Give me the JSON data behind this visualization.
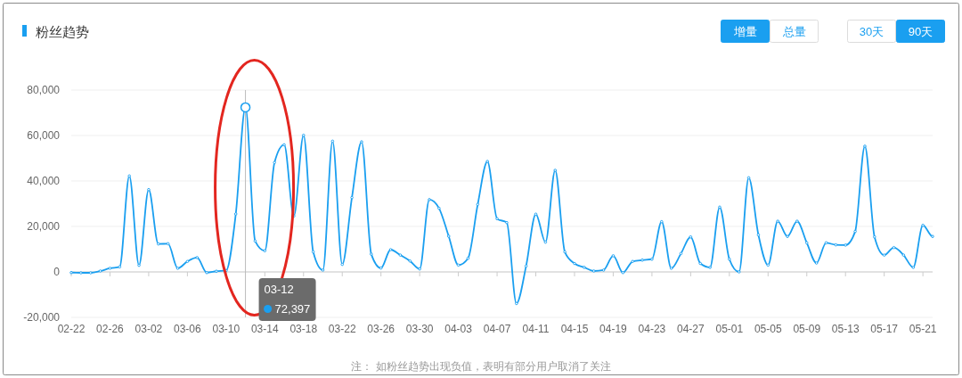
{
  "chart_data": [
    {
      "type": "line",
      "title": "粉丝趋势",
      "x": [
        "--02-22",
        "--02-23",
        "--02-24",
        "--02-25",
        "--02-26",
        "--02-27",
        "--02-28",
        "--03-01",
        "--03-02",
        "--03-03",
        "--03-04",
        "--03-05",
        "--03-06",
        "--03-07",
        "--03-08",
        "--03-09",
        "--03-10",
        "--03-11",
        "--03-12",
        "--03-13",
        "--03-14",
        "--03-15",
        "--03-16",
        "--03-17",
        "--03-18",
        "--03-19",
        "--03-20",
        "--03-21",
        "--03-22",
        "--03-23",
        "--03-24",
        "--03-25",
        "--03-26",
        "--03-27",
        "--03-28",
        "--03-29",
        "--03-30",
        "--03-31",
        "--04-01",
        "--04-02",
        "--04-03",
        "--04-04",
        "--04-05",
        "--04-06",
        "--04-07",
        "--04-08",
        "--04-09",
        "--04-10",
        "--04-11",
        "--04-12",
        "--04-13",
        "--04-14",
        "--04-15",
        "--04-16",
        "--04-17",
        "--04-18",
        "--04-19",
        "--04-20",
        "--04-21",
        "--04-22",
        "--04-23",
        "--04-24",
        "--04-25",
        "--04-26",
        "--04-27",
        "--04-28",
        "--04-29",
        "--04-30",
        "--05-01",
        "--05-02",
        "--05-03",
        "--05-04",
        "--05-05",
        "--05-06",
        "--05-07",
        "--05-08",
        "--05-09",
        "--05-10",
        "--05-11",
        "--05-12",
        "--05-13",
        "--05-14",
        "--05-15",
        "--05-16",
        "--05-17",
        "--05-18",
        "--05-19",
        "--05-20",
        "--05-21",
        "--05-22"
      ],
      "values": [
        -300,
        -400,
        -400,
        400,
        1600,
        2200,
        42200,
        2900,
        36200,
        12300,
        12400,
        1600,
        4600,
        6300,
        -300,
        300,
        600,
        25500,
        72397,
        13600,
        9300,
        48100,
        55900,
        24600,
        60100,
        8800,
        800,
        57500,
        3300,
        32700,
        57200,
        7800,
        1700,
        9800,
        7400,
        4800,
        1300,
        31800,
        28000,
        15700,
        3000,
        6000,
        29700,
        48600,
        23400,
        21700,
        -13900,
        2600,
        25400,
        13100,
        44700,
        8800,
        3700,
        2000,
        400,
        800,
        7100,
        -300,
        4600,
        5200,
        5600,
        22100,
        1600,
        8100,
        15400,
        3700,
        2000,
        28500,
        5600,
        0,
        41400,
        16300,
        3000,
        22300,
        15600,
        22300,
        12800,
        3900,
        12800,
        11900,
        11800,
        17800,
        55300,
        15400,
        7400,
        10700,
        7400,
        2000,
        20500,
        15600
      ],
      "color": "#1a9ff0",
      "marker": "circle",
      "grid": "y",
      "xlim": [
        "--02-22",
        "--05-22"
      ],
      "ylim": [
        -20000,
        80000
      ],
      "yticks": [
        {
          "value": -20000,
          "label": "-20,000"
        },
        0,
        {
          "value": 20000,
          "label": "20,000"
        },
        {
          "value": 40000,
          "label": "40,000"
        },
        {
          "value": 60000,
          "label": "60,000"
        },
        {
          "value": 80000,
          "label": "80,000"
        }
      ],
      "xticks": [
        {
          "value": "--02-22",
          "label": "02-22"
        },
        {
          "value": "--02-26",
          "label": "02-26"
        },
        {
          "value": "--03-02",
          "label": "03-02"
        },
        {
          "value": "--03-06",
          "label": "03-06"
        },
        {
          "value": "--03-10",
          "label": "03-10"
        },
        {
          "value": "--03-14",
          "label": "03-14"
        },
        {
          "value": "--03-18",
          "label": "03-18"
        },
        {
          "value": "--03-22",
          "label": "03-22"
        },
        {
          "value": "--03-26",
          "label": "03-26"
        },
        {
          "value": "--03-30",
          "label": "03-30"
        },
        {
          "value": "--04-03",
          "label": "04-03"
        },
        {
          "value": "--04-07",
          "label": "04-07"
        },
        {
          "value": "--04-11",
          "label": "04-11"
        },
        {
          "value": "--04-15",
          "label": "04-15"
        },
        {
          "value": "--04-19",
          "label": "04-19"
        },
        {
          "value": "--04-23",
          "label": "04-23"
        },
        {
          "value": "--04-27",
          "label": "04-27"
        },
        {
          "value": "--05-01",
          "label": "05-01"
        },
        {
          "value": "--05-05",
          "label": "05-05"
        },
        {
          "value": "--05-09",
          "label": "05-09"
        },
        {
          "value": "--05-13",
          "label": "05-13"
        },
        {
          "value": "--05-17",
          "label": "05-17"
        },
        {
          "value": "--05-21",
          "label": "05-21"
        }
      ],
      "ref_lines": [
        {
          "axis": "x",
          "value": "--03-12",
          "color": "#bbbbbb"
        }
      ],
      "annotations": [
        "03-12",
        "72,397",
        "注： 如粉丝趋势出现负值，表明有部分用户取消了关注"
      ]
    },
    {
      "type": "other",
      "annotations": [
        "增量",
        "总量",
        "30天",
        "90天"
      ]
    }
  ]
}
